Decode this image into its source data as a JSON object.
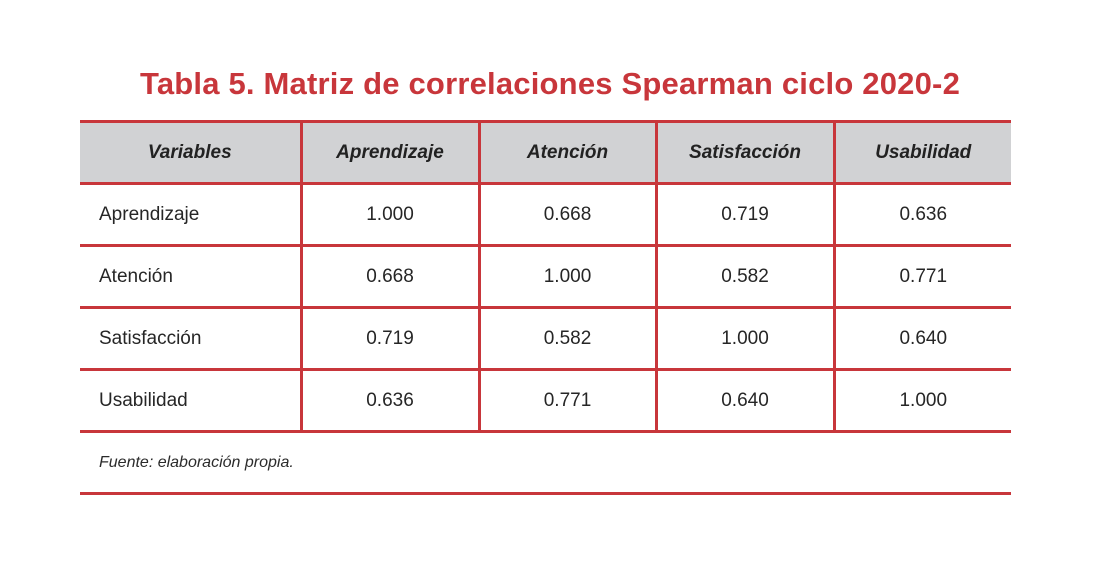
{
  "title": "Tabla 5. Matriz de correlaciones Spearman ciclo 2020-2",
  "table": {
    "headers": [
      "Variables",
      "Aprendizaje",
      "Atención",
      "Satisfacción",
      "Usabilidad"
    ],
    "rows": [
      {
        "label": "Aprendizaje",
        "values": [
          "1.000",
          "0.668",
          "0.719",
          "0.636"
        ]
      },
      {
        "label": "Atención",
        "values": [
          "0.668",
          "1.000",
          "0.582",
          "0.771"
        ]
      },
      {
        "label": "Satisfacción",
        "values": [
          "0.719",
          "0.582",
          "1.000",
          "0.640"
        ]
      },
      {
        "label": "Usabilidad",
        "values": [
          "0.636",
          "0.771",
          "0.640",
          "1.000"
        ]
      }
    ]
  },
  "source": "Fuente: elaboración propia.",
  "colors": {
    "accent": "#c8363b",
    "header_bg": "#d1d2d4"
  }
}
